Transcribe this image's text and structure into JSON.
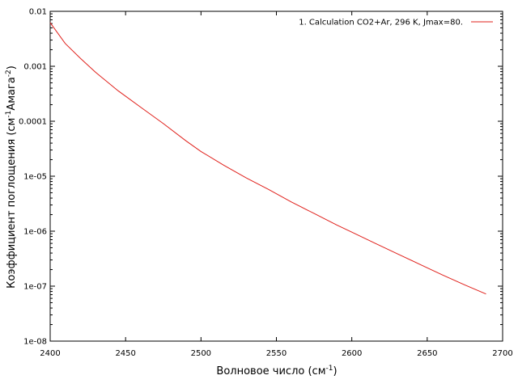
{
  "chart_data": {
    "type": "line",
    "xlabel": {
      "main": "Волновое число (см",
      "sup": "-1",
      "tail": ")"
    },
    "ylabel": {
      "main": "Коэффициент поглощения (см",
      "sup1": "-1",
      "mid": "Амага",
      "sup2": "-2",
      "tail": ")"
    },
    "xlim": [
      2400,
      2700
    ],
    "ylim": [
      1e-08,
      0.01
    ],
    "yscale": "log",
    "grid": false,
    "legend_position": "top-right",
    "x_ticks": [
      2400,
      2450,
      2500,
      2550,
      2600,
      2650,
      2700
    ],
    "x_tick_labels": [
      "2400",
      "2450",
      "2500",
      "2550",
      "2600",
      "2650",
      "2700"
    ],
    "y_ticks": [
      1e-08,
      1e-07,
      1e-06,
      1e-05,
      0.0001,
      0.001,
      0.01
    ],
    "y_tick_labels": [
      "1e-08",
      "1e-07",
      "1e-06",
      "1e-05",
      "0.0001",
      "0.001",
      "0.01"
    ],
    "series": [
      {
        "name": "1. Calculation  CO2+Ar, 296 K, Jmax=80.",
        "color": "#e0201b",
        "x": [
          2400,
          2410,
          2420,
          2430,
          2445,
          2460,
          2475,
          2490,
          2500,
          2515,
          2530,
          2545,
          2560,
          2575,
          2590,
          2600,
          2615,
          2630,
          2645,
          2660,
          2675,
          2689
        ],
        "y": [
          0.0062,
          0.0026,
          0.0014,
          0.00078,
          0.00036,
          0.00018,
          9.05e-05,
          4.41e-05,
          2.82e-05,
          1.59e-05,
          9.3e-06,
          5.7e-06,
          3.4e-06,
          2.1e-06,
          1.3e-06,
          9.6e-07,
          6.1e-07,
          3.9e-07,
          2.5e-07,
          1.6e-07,
          1.05e-07,
          7.2e-08
        ]
      }
    ]
  }
}
